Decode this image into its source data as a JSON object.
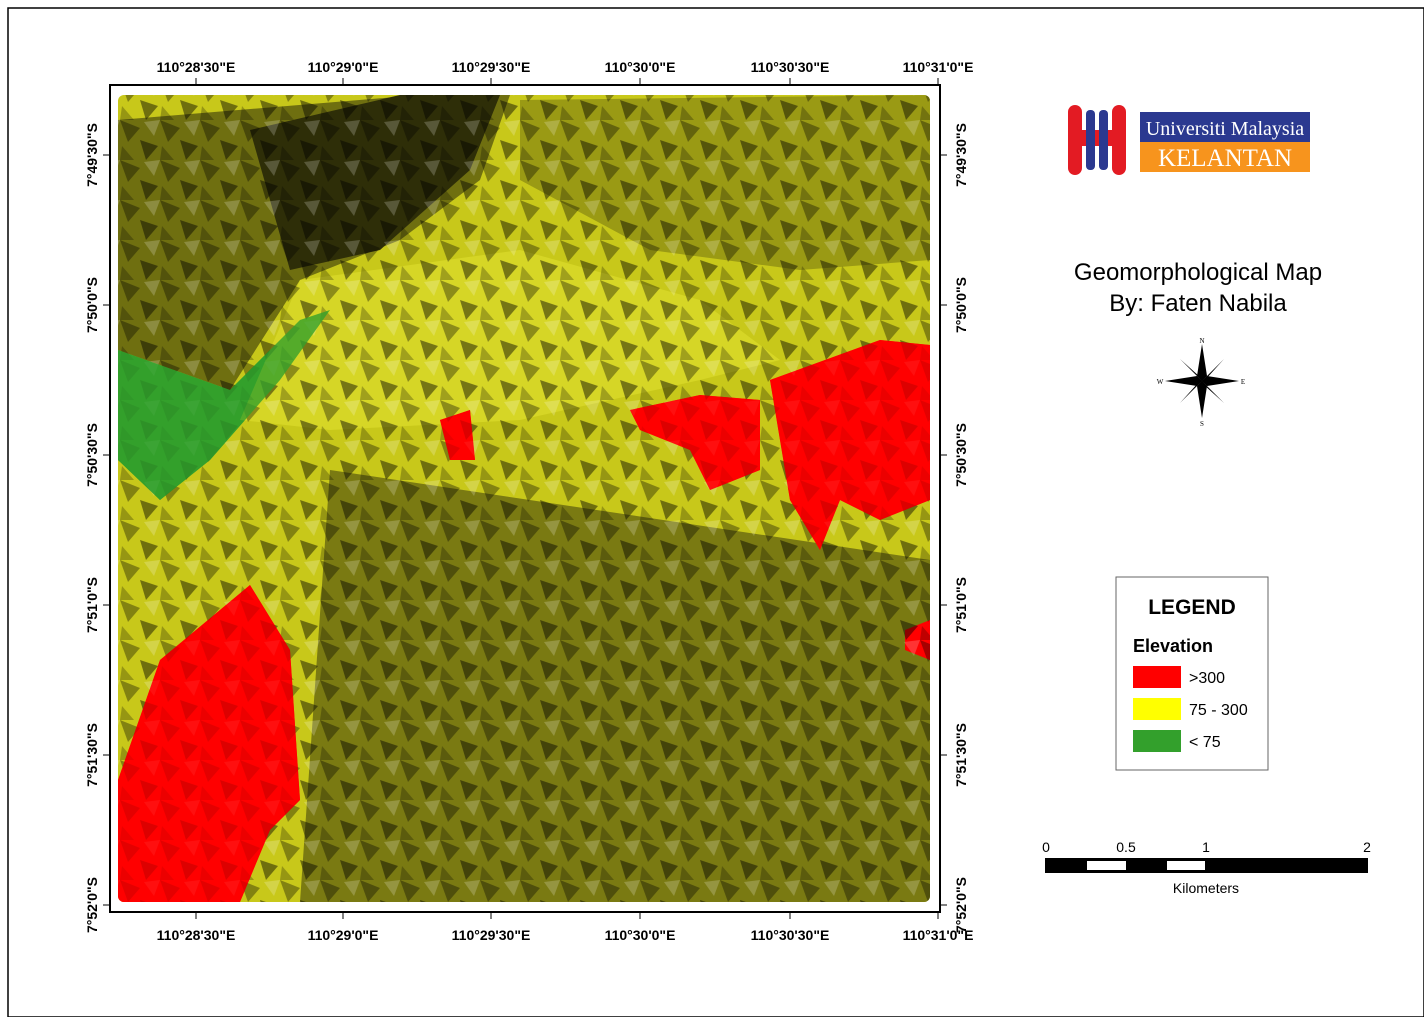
{
  "map": {
    "x_ticks": [
      "110°28'30\"E",
      "110°29'0\"E",
      "110°29'30\"E",
      "110°30'0\"E",
      "110°30'30\"E",
      "110°31'0\"E"
    ],
    "y_ticks": [
      "7°49'30\"S",
      "7°50'0\"S",
      "7°50'30\"S",
      "7°51'0\"S",
      "7°51'30\"S",
      "7°52'0\"S"
    ]
  },
  "logo": {
    "line1": "Universiti Malaysia",
    "line2": "KELANTAN"
  },
  "title": {
    "line1": "Geomorphological Map",
    "line2": "By: Faten Nabila"
  },
  "compass": {
    "n": "N",
    "e": "E",
    "s": "S",
    "w": "W"
  },
  "legend": {
    "title": "LEGEND",
    "subtitle": "Elevation",
    "items": [
      {
        "label": ">300",
        "color": "#ff0000"
      },
      {
        "label": "75 - 300",
        "color": "#ffff00"
      },
      {
        "label": "< 75",
        "color": "#33a02c"
      }
    ]
  },
  "scale_bar": {
    "labels": [
      "0",
      "0.5",
      "1",
      "2"
    ],
    "unit": "Kilometers"
  }
}
